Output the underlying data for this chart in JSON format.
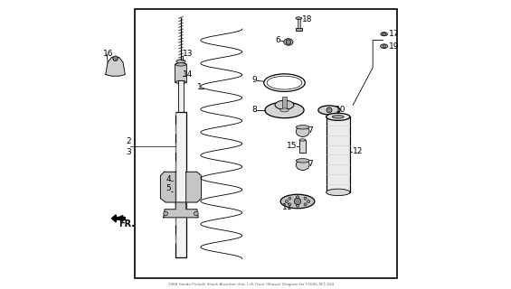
{
  "bg_color": "#ffffff",
  "line_color": "#000000",
  "title_text": "1988 Honda Prelude Shock Absorber Unit, Left Front (Showa) Diagram for 51606-SF1-024"
}
